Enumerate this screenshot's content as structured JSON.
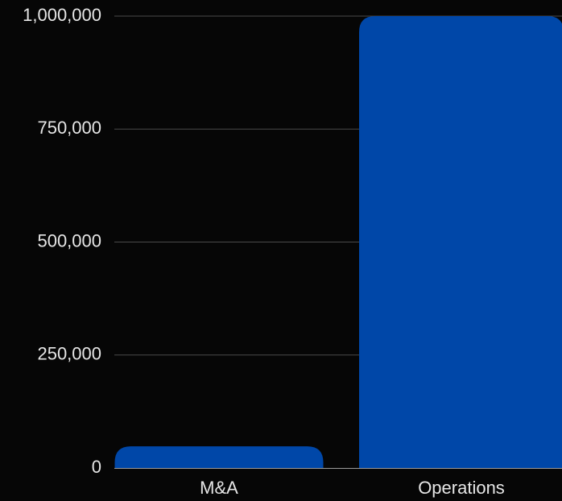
{
  "chart_data": {
    "type": "bar",
    "categories": [
      "M&A",
      "Operations"
    ],
    "values": [
      48000,
      1000000
    ],
    "yticks": [
      0,
      250000,
      500000,
      750000,
      1000000
    ],
    "ytick_labels": [
      "0",
      "250,000",
      "500,000",
      "750,000",
      "1,000,000"
    ],
    "ylim": [
      0,
      1000000
    ],
    "grid": true,
    "colors": {
      "bar": "#0047a8",
      "background": "#060606",
      "text": "#e6e6e6",
      "grid": "#4a4a4a"
    }
  }
}
